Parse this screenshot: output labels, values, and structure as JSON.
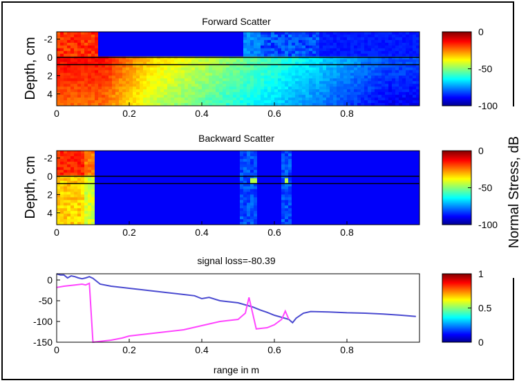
{
  "chart_data": [
    {
      "type": "heatmap",
      "title": "Forward Scatter",
      "ylabel": "Depth, cm",
      "xlim": [
        0,
        1
      ],
      "ylim": [
        -2.8,
        5.3
      ],
      "yticks": [
        "-2",
        "0",
        "2",
        "4"
      ],
      "xticks": [
        "0",
        "0.2",
        "0.4",
        "0.6",
        "0.8"
      ],
      "interfaces_cm": [
        0,
        0.8
      ],
      "colorbar": {
        "min": -100,
        "max": 0,
        "ticks": [
          "0",
          "-50",
          "-100"
        ]
      }
    },
    {
      "type": "heatmap",
      "title": "Backward Scatter",
      "ylabel": "Depth, cm",
      "xlim": [
        0,
        1
      ],
      "ylim": [
        -2.8,
        5.3
      ],
      "yticks": [
        "-2",
        "0",
        "2",
        "4"
      ],
      "xticks": [
        "0",
        "0.2",
        "0.4",
        "0.6",
        "0.8"
      ],
      "interfaces_cm": [
        0,
        0.8
      ],
      "colorbar": {
        "min": -100,
        "max": 0,
        "ticks": [
          "0",
          "-50",
          "-100"
        ]
      }
    },
    {
      "type": "line",
      "title": "signal loss=-80.39",
      "xlabel": "range in m",
      "xlim": [
        0,
        1
      ],
      "ylim": [
        -150,
        15
      ],
      "yticks": [
        "0",
        "-50",
        "-100",
        "-150"
      ],
      "xticks": [
        "0",
        "0.2",
        "0.4",
        "0.6",
        "0.8"
      ],
      "colorbar": {
        "min": 0,
        "max": 1,
        "ticks": [
          "1",
          "0.5",
          "0"
        ]
      },
      "series": [
        {
          "color": "#4a4ad0",
          "x": [
            0,
            0.01,
            0.02,
            0.03,
            0.04,
            0.05,
            0.06,
            0.07,
            0.08,
            0.09,
            0.1,
            0.12,
            0.15,
            0.2,
            0.25,
            0.3,
            0.35,
            0.38,
            0.4,
            0.42,
            0.45,
            0.5,
            0.52,
            0.54,
            0.56,
            0.58,
            0.6,
            0.62,
            0.64,
            0.65,
            0.66,
            0.68,
            0.7,
            0.75,
            0.8,
            0.85,
            0.9,
            0.95,
            0.99
          ],
          "y": [
            15,
            12,
            12,
            5,
            10,
            8,
            5,
            3,
            5,
            8,
            4,
            -10,
            -15,
            -20,
            -25,
            -30,
            -35,
            -38,
            -45,
            -42,
            -50,
            -55,
            -60,
            -65,
            -72,
            -78,
            -85,
            -90,
            -95,
            -103,
            -92,
            -80,
            -76,
            -77,
            -79,
            -80,
            -82,
            -85,
            -88
          ]
        },
        {
          "color": "#ff44ff",
          "x": [
            0,
            0.02,
            0.05,
            0.07,
            0.08,
            0.09,
            0.1,
            0.12,
            0.15,
            0.18,
            0.2,
            0.25,
            0.3,
            0.35,
            0.4,
            0.45,
            0.5,
            0.52,
            0.53,
            0.55,
            0.58,
            0.6,
            0.62,
            0.63,
            0.64
          ],
          "y": [
            -18,
            -15,
            -12,
            -10,
            -12,
            -8,
            -150,
            -148,
            -145,
            -140,
            -135,
            -130,
            -125,
            -120,
            -110,
            -100,
            -95,
            -80,
            -42,
            -118,
            -115,
            -108,
            -95,
            -75,
            -95
          ]
        }
      ]
    }
  ],
  "side_label": "Normal Stress, dB"
}
